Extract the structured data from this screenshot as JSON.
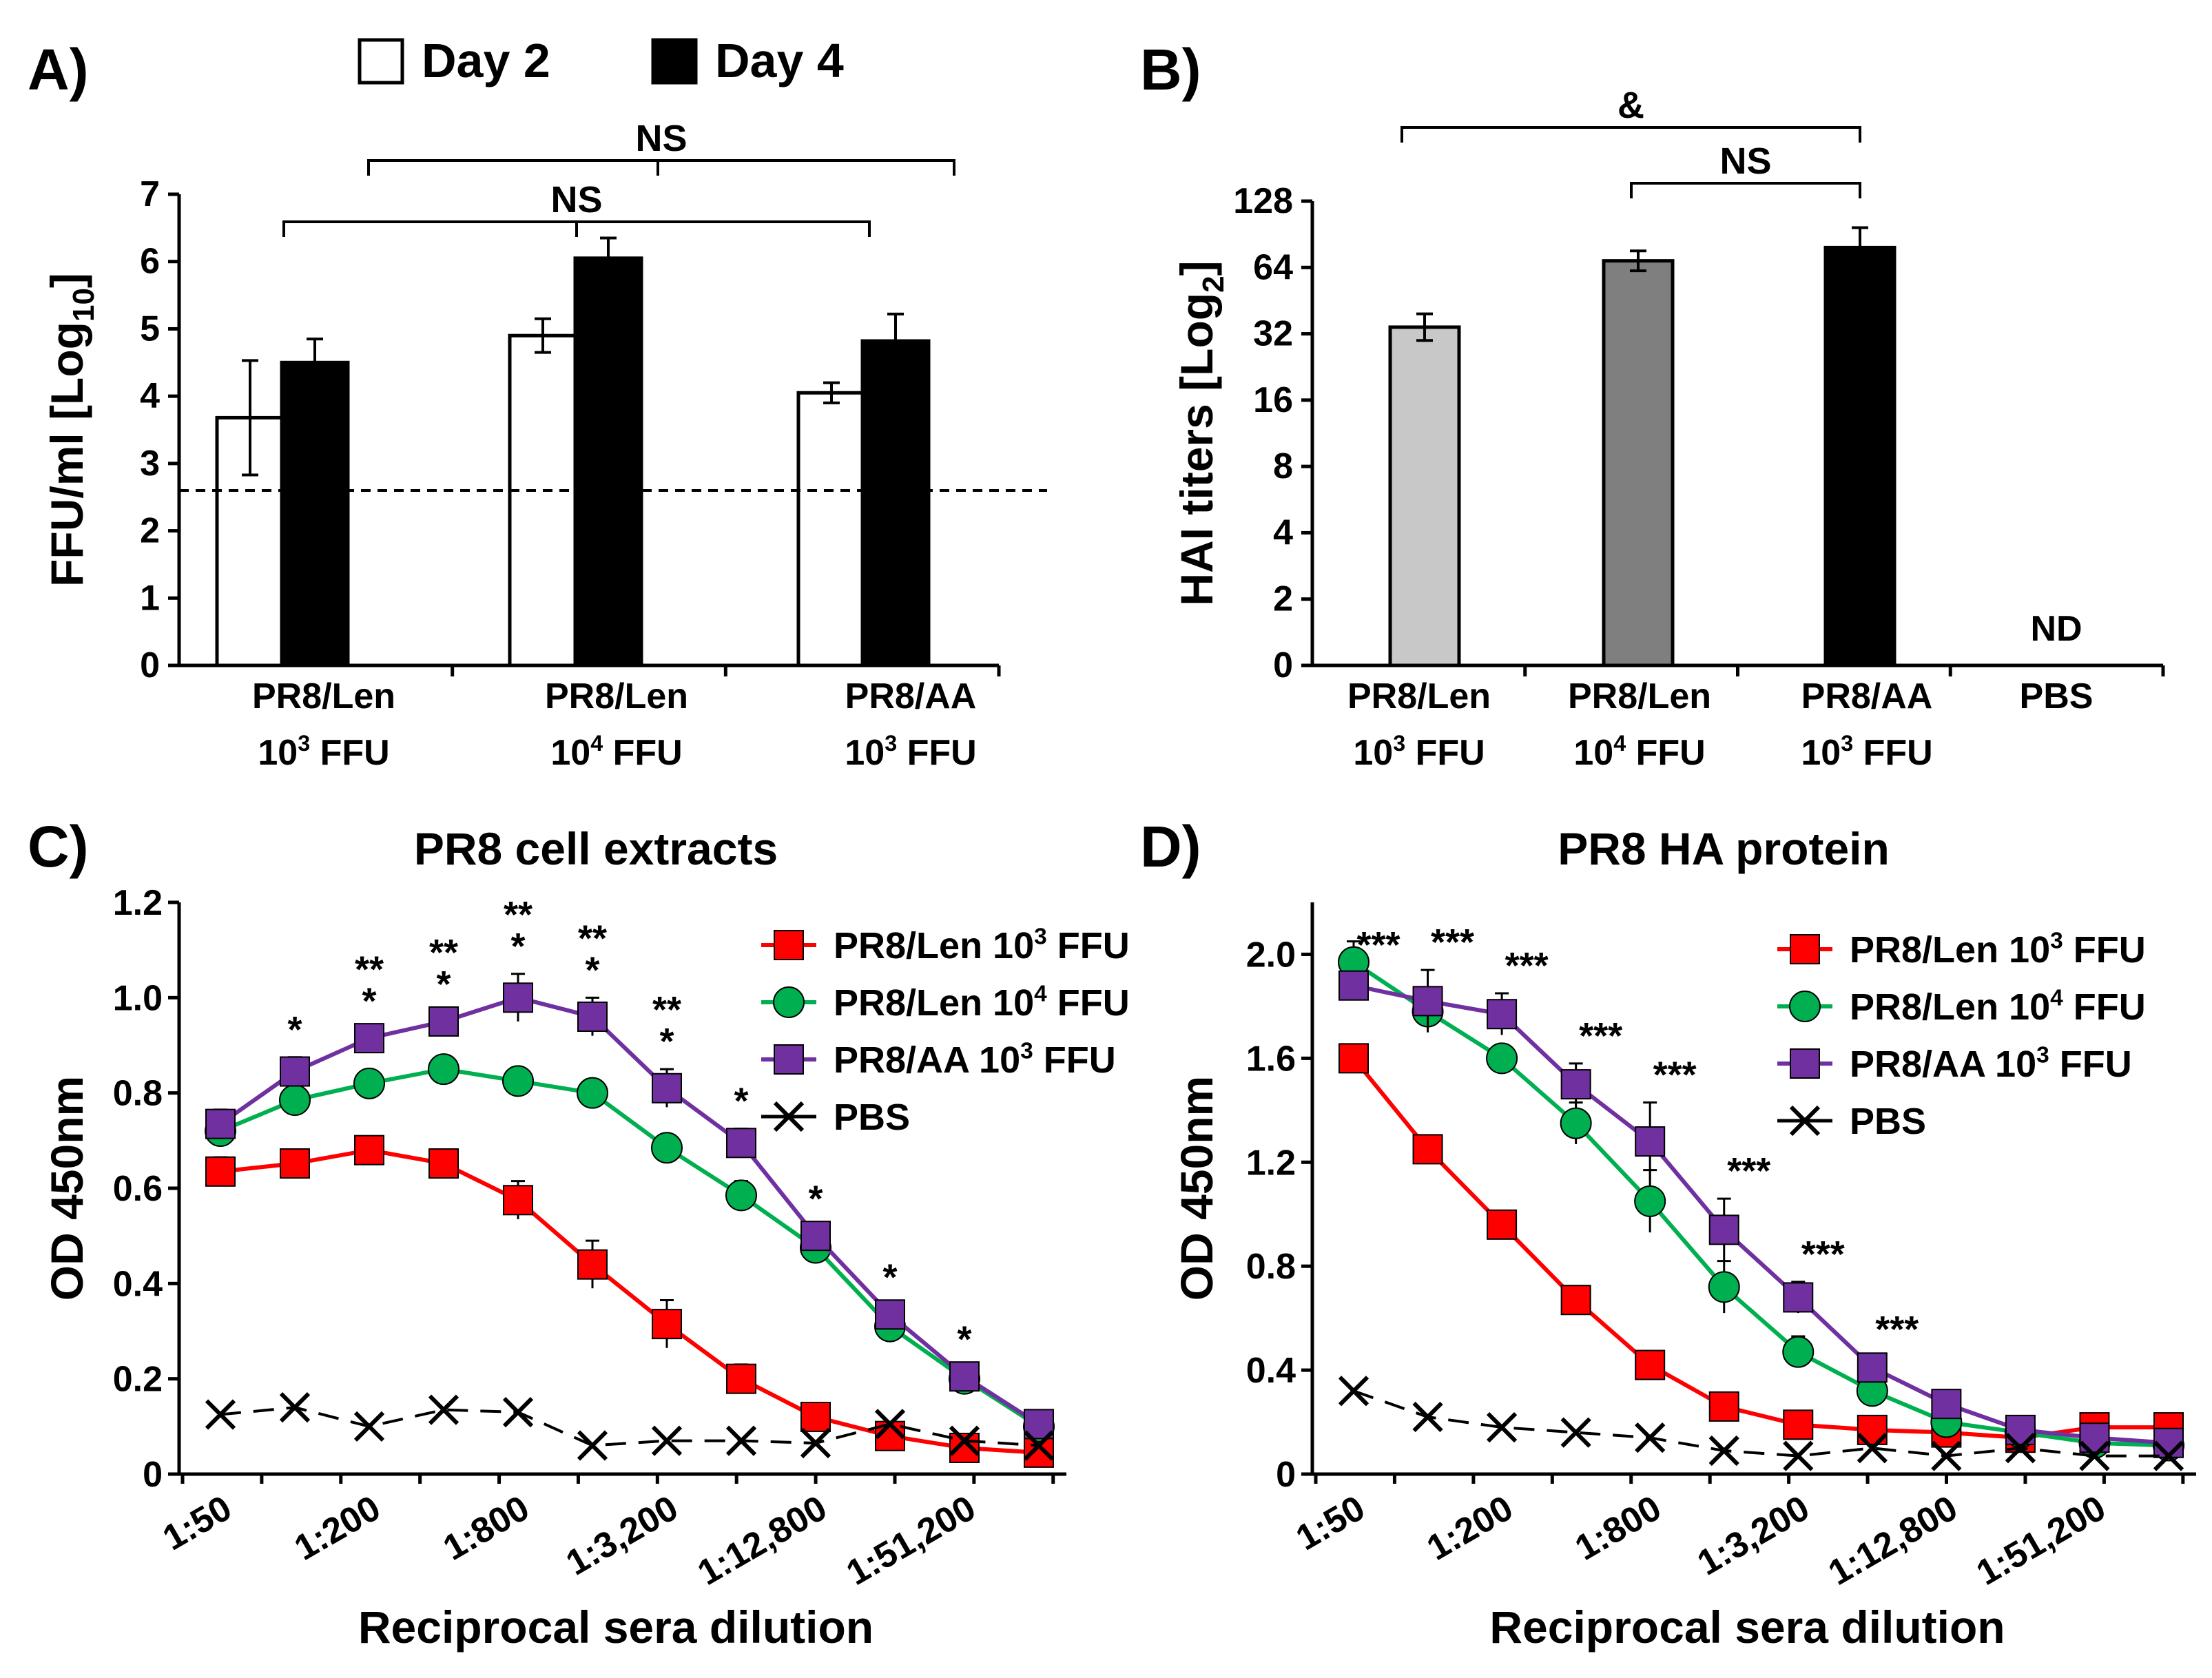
{
  "chart_data": [
    {
      "panel": "A)",
      "type": "bar",
      "title": "",
      "xlabel": "",
      "ylabel": "FFU/ml [Log",
      "ylabel_sub": "10",
      "ylabel_end": "]",
      "ylim": [
        0,
        7
      ],
      "yticks": [
        "0",
        "1",
        "2",
        "3",
        "4",
        "5",
        "6",
        "7"
      ],
      "categories": [
        {
          "line1": "PR8/Len",
          "line2a": "10",
          "sup": "3",
          "line2b": " FFU"
        },
        {
          "line1": "PR8/Len",
          "line2a": "10",
          "sup": "4",
          "line2b": " FFU"
        },
        {
          "line1": "PR8/AA",
          "line2a": "10",
          "sup": "3",
          "line2b": " FFU"
        }
      ],
      "series": [
        {
          "name": "Day 2",
          "fill": "#ffffff",
          "values": [
            3.68,
            4.9,
            4.05
          ],
          "errors": [
            0.85,
            0.25,
            0.15
          ]
        },
        {
          "name": "Day 4",
          "fill": "#000000",
          "values": [
            4.5,
            6.05,
            4.82
          ],
          "errors": [
            0.35,
            0.3,
            0.4
          ]
        }
      ],
      "detection_limit": 2.6,
      "legend": [
        "Day 2",
        "Day 4"
      ],
      "brackets": [
        {
          "label": "NS",
          "from": "Day 2 PR8/Len 10^3 FFU",
          "to": "Day 2 PR8/AA 10^3 FFU"
        },
        {
          "label": "NS",
          "from": "Day 4 PR8/Len 10^3 FFU",
          "to": "Day 4 PR8/AA 10^3 FFU"
        }
      ]
    },
    {
      "panel": "B)",
      "type": "bar",
      "title": "",
      "xlabel": "",
      "ylabel": "HAI titers [Log",
      "ylabel_sub": "2",
      "ylabel_end": "]",
      "ylim": [
        0,
        128
      ],
      "yticks": [
        "0",
        "2",
        "4",
        "8",
        "16",
        "32",
        "64",
        "128"
      ],
      "categories": [
        {
          "line1": "PR8/Len",
          "line2a": "10",
          "sup": "3",
          "line2b": " FFU"
        },
        {
          "line1": "PR8/Len",
          "line2a": "10",
          "sup": "4",
          "line2b": " FFU"
        },
        {
          "line1": "PR8/AA",
          "line2a": "10",
          "sup": "3",
          "line2b": " FFU"
        },
        {
          "line1": "PBS",
          "line2a": "",
          "sup": "",
          "line2b": ""
        }
      ],
      "values_log2": [
        5.1,
        6.1,
        6.3,
        null
      ],
      "errors_log2": [
        0.2,
        0.15,
        0.3,
        null
      ],
      "fills": [
        "#c8c8c8",
        "#7f7f7f",
        "#000000",
        "none"
      ],
      "na_label": "ND",
      "brackets": [
        {
          "label": "&",
          "from": "PR8/Len 10^3 FFU",
          "to": "PR8/AA 10^3 FFU"
        },
        {
          "label": "NS",
          "from": "PR8/Len 10^4 FFU",
          "to": "PR8/AA 10^3 FFU"
        }
      ]
    },
    {
      "panel": "C)",
      "type": "line",
      "title": "PR8 cell extracts",
      "xlabel": "Reciprocal sera dilution",
      "ylabel": "OD 450nm",
      "ylim": [
        0,
        1.2
      ],
      "yticks": [
        "0",
        "0.2",
        "0.4",
        "0.6",
        "0.8",
        "1.0",
        "1.2"
      ],
      "xtick_labels": [
        "1:50",
        "1:200",
        "1:800",
        "1:3,200",
        "1:12,800",
        "1:51,200"
      ],
      "n_points": 12,
      "series": [
        {
          "name": "PR8/Len 10",
          "sup": "3",
          "suffix": " FFU",
          "color": "#ff0000",
          "marker": "square",
          "values": [
            0.635,
            0.652,
            0.68,
            0.652,
            0.575,
            0.44,
            0.315,
            0.2,
            0.12,
            0.08,
            0.055,
            0.045
          ],
          "errors": [
            0.03,
            0.02,
            0.02,
            0.02,
            0.04,
            0.05,
            0.05,
            0.03,
            0.01,
            0.01,
            0.01,
            0.01
          ]
        },
        {
          "name": "PR8/Len 10",
          "sup": "4",
          "suffix": " FFU",
          "color": "#00b050",
          "marker": "circle",
          "values": [
            0.72,
            0.785,
            0.82,
            0.85,
            0.825,
            0.8,
            0.685,
            0.585,
            0.475,
            0.31,
            0.2,
            0.1
          ],
          "errors": [
            0.03,
            0.02,
            0.01,
            0.01,
            0.01,
            0.01,
            0.02,
            0.03,
            0.02,
            0.02,
            0.02,
            0.01
          ]
        },
        {
          "name": "PR8/AA 10",
          "sup": "3",
          "suffix": " FFU",
          "color": "#7030a0",
          "marker": "square",
          "values": [
            0.735,
            0.845,
            0.915,
            0.95,
            1.0,
            0.96,
            0.81,
            0.695,
            0.5,
            0.335,
            0.205,
            0.105
          ],
          "errors": [
            0.03,
            0.03,
            0.02,
            0.02,
            0.05,
            0.04,
            0.04,
            0.03,
            0.02,
            0.02,
            0.02,
            0.01
          ]
        },
        {
          "name": "PBS",
          "sup": "",
          "suffix": "",
          "color": "#000000",
          "marker": "x",
          "dashed": true,
          "values": [
            0.125,
            0.14,
            0.1,
            0.135,
            0.13,
            0.06,
            0.07,
            0.07,
            0.065,
            0.105,
            0.07,
            0.06
          ],
          "errors": []
        }
      ],
      "annotations": [
        {
          "point": 2,
          "lines": [
            "*"
          ]
        },
        {
          "point": 3,
          "lines": [
            "**",
            "*"
          ]
        },
        {
          "point": 4,
          "lines": [
            "**",
            "*"
          ]
        },
        {
          "point": 5,
          "lines": [
            "**",
            "*"
          ]
        },
        {
          "point": 6,
          "lines": [
            "**",
            "*"
          ]
        },
        {
          "point": 7,
          "lines": [
            "**",
            "*"
          ]
        },
        {
          "point": 8,
          "lines": [
            "*"
          ]
        },
        {
          "point": 9,
          "lines": [
            "*"
          ]
        },
        {
          "point": 10,
          "lines": [
            "*"
          ]
        },
        {
          "point": 11,
          "lines": [
            "*"
          ]
        }
      ]
    },
    {
      "panel": "D)",
      "type": "line",
      "title": "PR8 HA protein",
      "xlabel": "Reciprocal sera dilution",
      "ylabel": "OD 450nm",
      "ylim": [
        0,
        2.2
      ],
      "yticks": [
        "0",
        "0.4",
        "0.8",
        "1.2",
        "1.6",
        "2.0"
      ],
      "ytick_values": [
        0,
        0.4,
        0.8,
        1.2,
        1.6,
        2.0
      ],
      "xtick_labels": [
        "1:50",
        "1:200",
        "1:800",
        "1:3,200",
        "1:12,800",
        "1:51,200"
      ],
      "n_points": 12,
      "series": [
        {
          "name": "PR8/Len 10",
          "sup": "3",
          "suffix": " FFU",
          "color": "#ff0000",
          "marker": "square",
          "values": [
            1.6,
            1.25,
            0.96,
            0.67,
            0.42,
            0.26,
            0.19,
            0.17,
            0.16,
            0.14,
            0.18,
            0.18
          ],
          "errors": [
            0.02,
            0.02,
            0.05,
            0.02,
            0.02,
            0.02,
            0.02,
            0.02,
            0.01,
            0.01,
            0.02,
            0.02
          ]
        },
        {
          "name": "PR8/Len 10",
          "sup": "4",
          "suffix": " FFU",
          "color": "#00b050",
          "marker": "circle",
          "values": [
            1.97,
            1.78,
            1.6,
            1.35,
            1.05,
            0.72,
            0.47,
            0.32,
            0.2,
            0.16,
            0.12,
            0.11
          ],
          "errors": [
            0.08,
            0.08,
            0.05,
            0.08,
            0.12,
            0.1,
            0.06,
            0.04,
            0.02,
            0.02,
            0.02,
            0.01
          ]
        },
        {
          "name": "PR8/AA 10",
          "sup": "3",
          "suffix": " FFU",
          "color": "#7030a0",
          "marker": "square",
          "values": [
            1.88,
            1.82,
            1.77,
            1.5,
            1.28,
            0.94,
            0.68,
            0.41,
            0.27,
            0.17,
            0.14,
            0.12
          ],
          "errors": [
            0.05,
            0.12,
            0.08,
            0.08,
            0.15,
            0.12,
            0.06,
            0.04,
            0.02,
            0.02,
            0.02,
            0.01
          ]
        },
        {
          "name": "PBS",
          "sup": "",
          "suffix": "",
          "color": "#000000",
          "marker": "x",
          "dashed": true,
          "values": [
            0.32,
            0.22,
            0.18,
            0.16,
            0.14,
            0.09,
            0.07,
            0.1,
            0.07,
            0.1,
            0.07,
            0.07
          ],
          "errors": []
        }
      ],
      "annotations": [
        {
          "point": 1,
          "lines": [
            "***"
          ]
        },
        {
          "point": 2,
          "lines": [
            "***"
          ]
        },
        {
          "point": 3,
          "lines": [
            "***"
          ]
        },
        {
          "point": 4,
          "lines": [
            "***"
          ]
        },
        {
          "point": 5,
          "lines": [
            "***"
          ]
        },
        {
          "point": 6,
          "lines": [
            "***"
          ]
        },
        {
          "point": 7,
          "lines": [
            "***"
          ]
        },
        {
          "point": 8,
          "lines": [
            "***"
          ]
        }
      ]
    }
  ]
}
